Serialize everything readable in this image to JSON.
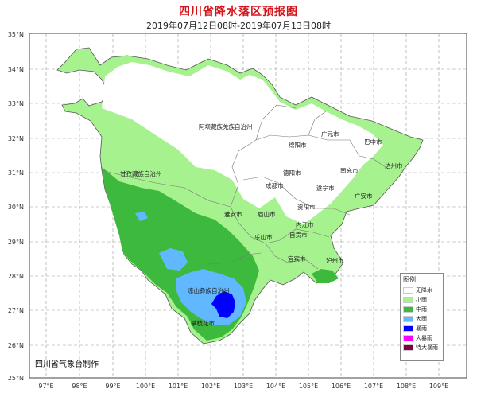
{
  "title": "四川省降水落区预报图",
  "subtitle": "2019年07月12日08时-2019年07月13日08时",
  "credit": "四川省气象台制作",
  "lat_labels": [
    "35°N",
    "34°N",
    "33°N",
    "32°N",
    "31°N",
    "30°N",
    "29°N",
    "28°N",
    "27°N",
    "26°N",
    "25°N"
  ],
  "lon_labels": [
    "97°E",
    "98°E",
    "99°E",
    "100°E",
    "101°E",
    "102°E",
    "103°E",
    "104°E",
    "105°E",
    "106°E",
    "107°E",
    "108°E",
    "109°E"
  ],
  "cities": [
    {
      "name": "阿坝藏族羌族自治州"
    },
    {
      "name": "广元市"
    },
    {
      "name": "巴中市"
    },
    {
      "name": "绵阳市"
    },
    {
      "name": "达州市"
    },
    {
      "name": "甘孜藏族自治州"
    },
    {
      "name": "德阳市"
    },
    {
      "name": "南充市"
    },
    {
      "name": "成都市"
    },
    {
      "name": "遂宁市"
    },
    {
      "name": "广安市"
    },
    {
      "name": "资阳市"
    },
    {
      "name": "雅安市"
    },
    {
      "name": "眉山市"
    },
    {
      "name": "内江市"
    },
    {
      "name": "乐山市"
    },
    {
      "name": "自贡市"
    },
    {
      "name": "宜宾市"
    },
    {
      "name": "泸州市"
    },
    {
      "name": "凉山彝族自治州"
    },
    {
      "name": "攀枝花市"
    }
  ],
  "legend": {
    "title": "图例",
    "items": [
      {
        "label": "无降水",
        "color": "#ffffff"
      },
      {
        "label": "小雨",
        "color": "#a6f28f"
      },
      {
        "label": "中雨",
        "color": "#3dba3d"
      },
      {
        "label": "大雨",
        "color": "#61b8ff"
      },
      {
        "label": "暴雨",
        "color": "#0000fe"
      },
      {
        "label": "大暴雨",
        "color": "#fa00fa"
      },
      {
        "label": "特大暴雨",
        "color": "#800040"
      }
    ]
  }
}
